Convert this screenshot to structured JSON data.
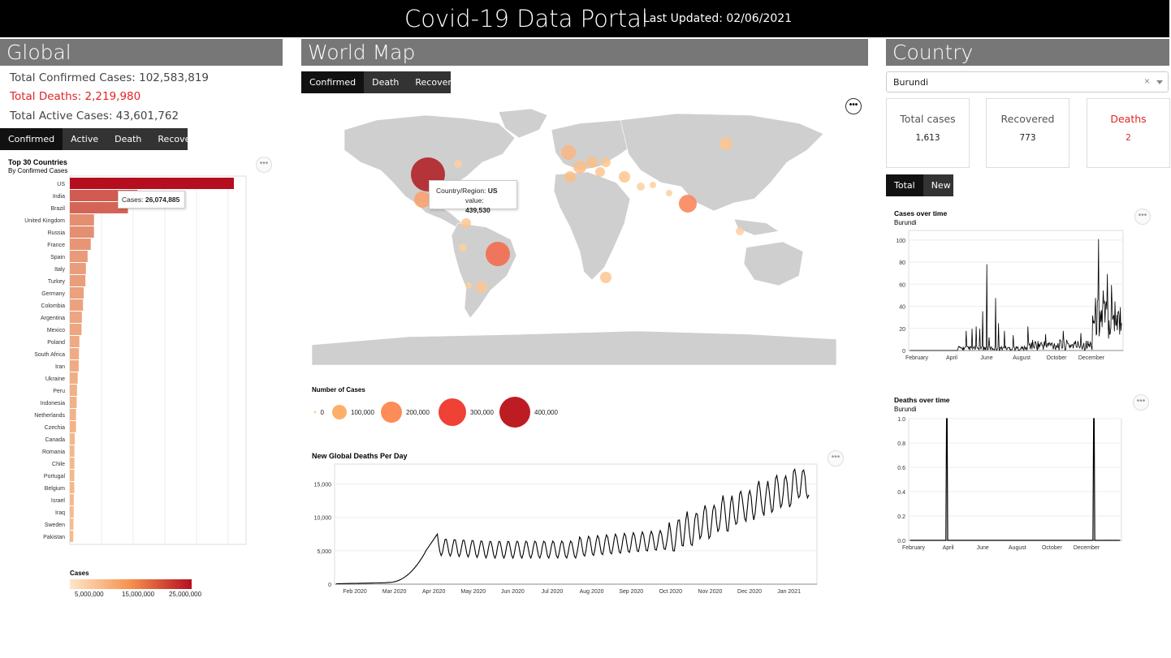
{
  "header": {
    "title": "Covid-19 Data Portal",
    "updated": "Last Updated: 02/06/2021"
  },
  "global": {
    "section_title": "Global",
    "confirmed": "Total Confirmed Cases: 102,583,819",
    "deaths": "Total Deaths: 2,219,980",
    "active": "Total Active Cases: 43,601,762",
    "tabs": [
      "Confirmed",
      "Active",
      "Death",
      "Recovered"
    ],
    "tooltip_label": "Cases:",
    "tooltip_value": "26,074,885"
  },
  "worldmap": {
    "section_title": "World Map",
    "tabs": [
      "Confirmed",
      "Death",
      "Recovered"
    ],
    "tooltip_country_label": "Country/Region:",
    "tooltip_country": "US",
    "tooltip_value_label": "value:",
    "tooltip_value": "439,530",
    "legend_title": "Number of Cases",
    "legend_items": [
      {
        "label": "0",
        "color": "#fdd0a2"
      },
      {
        "label": "100,000",
        "color": "#fdae6b"
      },
      {
        "label": "200,000",
        "color": "#fc8d59"
      },
      {
        "label": "300,000",
        "color": "#ef4136"
      },
      {
        "label": "400,000",
        "color": "#bd1d22"
      }
    ]
  },
  "country": {
    "section_title": "Country",
    "selected": "Burundi",
    "clear_glyph": "×",
    "cards": [
      {
        "label": "Total cases",
        "value": "1,613"
      },
      {
        "label": "Recovered",
        "value": "773"
      },
      {
        "label": "Deaths",
        "value": "2"
      }
    ],
    "tabs": [
      "Total",
      "New"
    ]
  },
  "icons": {
    "more": "more-options-icon",
    "dropdown": "chevron-down-icon",
    "clear": "clear-icon"
  },
  "chart_data": [
    {
      "type": "bar",
      "title": "Top 30 Countries",
      "subtitle": "By Confirmed Cases",
      "categories": [
        "US",
        "India",
        "Brazil",
        "United Kingdom",
        "Russia",
        "France",
        "Spain",
        "Italy",
        "Turkey",
        "Germany",
        "Colombia",
        "Argentina",
        "Mexico",
        "Poland",
        "South Africa",
        "Iran",
        "Ukraine",
        "Peru",
        "Indonesia",
        "Netherlands",
        "Czechia",
        "Canada",
        "Romania",
        "Chile",
        "Portugal",
        "Belgium",
        "Israel",
        "Iraq",
        "Sweden",
        "Pakistan"
      ],
      "values": [
        26074885,
        10746183,
        9229322,
        3846851,
        3832994,
        3323851,
        2822805,
        2553032,
        2477463,
        2216363,
        2099886,
        1915362,
        1857230,
        1521007,
        1449371,
        1410332,
        1251479,
        1138788,
        1089308,
        992683,
        981003,
        778616,
        729158,
        723374,
        711018,
        712566,
        635833,
        614618,
        574000,
        546428
      ],
      "legend_title": "Cases",
      "legend_ticks": [
        "5,000,000",
        "15,000,000",
        "25,000,000"
      ],
      "color_range": [
        "#fdd49e",
        "#b50f1f"
      ]
    },
    {
      "type": "scatter",
      "title": "",
      "description_markers": [
        "US",
        "Brazil",
        "India"
      ],
      "size_legend": "Number of Cases"
    },
    {
      "type": "line",
      "title": "New Global Deaths Per Day",
      "xlabels": [
        "Feb 2020",
        "Mar 2020",
        "Apr 2020",
        "May 2020",
        "Jun 2020",
        "Jul 2020",
        "Aug 2020",
        "Sep 2020",
        "Oct 2020",
        "Nov 2020",
        "Dec 2020",
        "Jan 2021"
      ],
      "yticks": [
        "0",
        "5,000",
        "10,000",
        "15,000"
      ],
      "ylim": [
        0,
        18000
      ]
    },
    {
      "type": "line",
      "title": "Cases over time",
      "subtitle": "Burundi",
      "xlabels": [
        "February",
        "April",
        "June",
        "August",
        "October",
        "December"
      ],
      "yticks": [
        "0",
        "20",
        "40",
        "60",
        "80",
        "100"
      ],
      "ylim": [
        0,
        110
      ]
    },
    {
      "type": "line",
      "title": "Deaths over time",
      "subtitle": "Burundi",
      "xlabels": [
        "February",
        "April",
        "June",
        "August",
        "October",
        "December"
      ],
      "yticks": [
        "0.0",
        "0.2",
        "0.4",
        "0.6",
        "0.8",
        "1.0"
      ],
      "ylim": [
        0,
        1
      ]
    }
  ]
}
